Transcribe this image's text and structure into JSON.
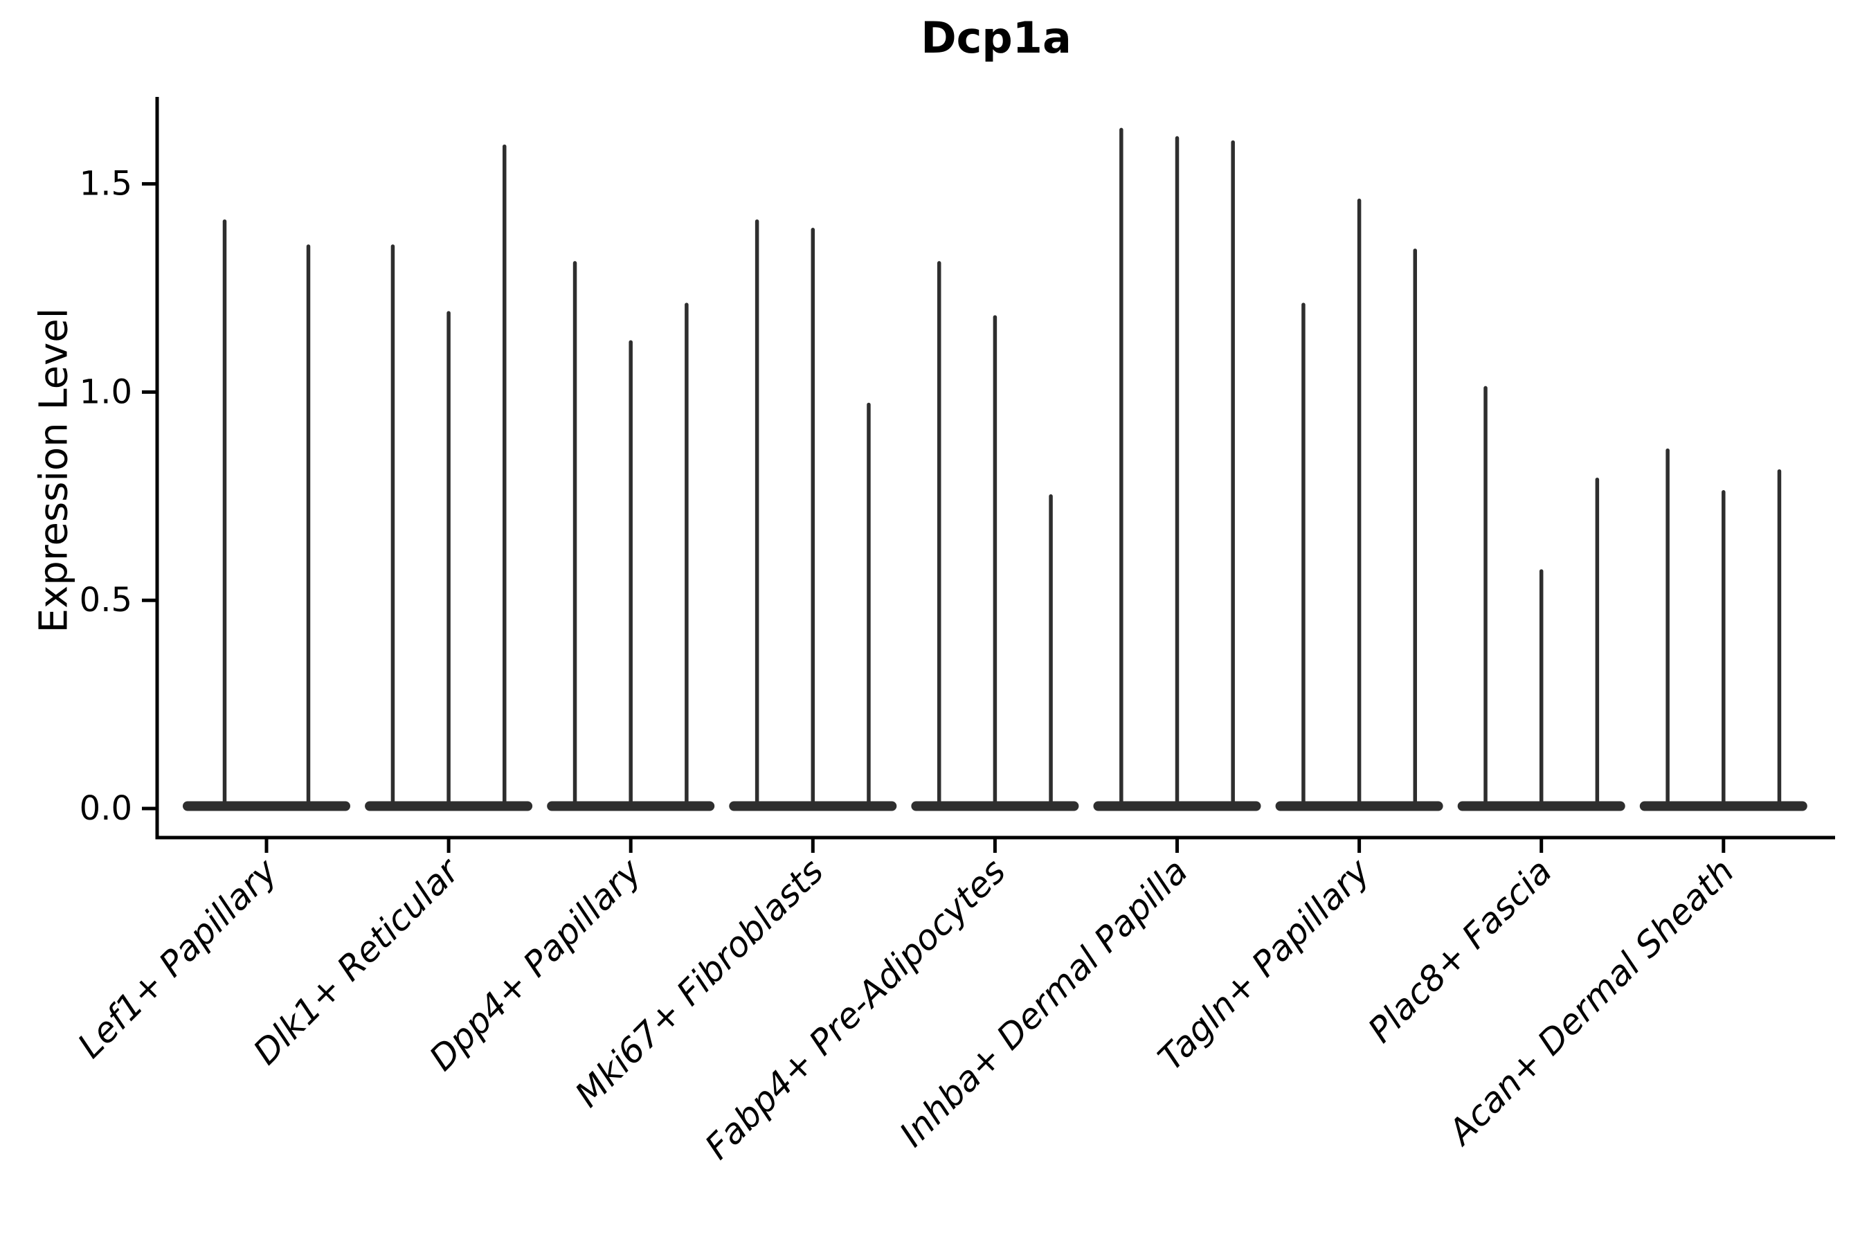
{
  "figure": {
    "title": "Dcp1a",
    "y_axis_label": "Expression Level"
  },
  "chart_data": {
    "type": "violin",
    "title": "Dcp1a",
    "xlabel": "",
    "ylabel": "Expression Level",
    "yticks": [
      0.0,
      0.5,
      1.0,
      1.5
    ],
    "ytick_labels": [
      "0.0",
      "0.5",
      "1.0",
      "1.5"
    ],
    "ylim": [
      -0.07,
      1.72
    ],
    "grid": false,
    "legend": "none",
    "description": "Zero-inflated expression violins: each violin is a flat dense bump at 0 with a very thin tail (spike) reaching up to the maximum expression value listed in violin_peaks.",
    "categories": [
      "Lef1+ Papillary",
      "Dlk1+ Reticular",
      "Dpp4+ Papillary",
      "Mki67+ Fibroblasts",
      "Fabp4+ Pre-Adipocytes",
      "Inhba+ Dermal Papilla",
      "Tagln+ Papillary",
      "Plac8+ Fascia",
      "Acan+ Dermal Sheath"
    ],
    "series": [
      {
        "category": "Lef1+ Papillary",
        "violin_peaks": [
          1.41,
          1.35
        ]
      },
      {
        "category": "Dlk1+ Reticular",
        "violin_peaks": [
          1.35,
          1.19,
          1.59
        ]
      },
      {
        "category": "Dpp4+ Papillary",
        "violin_peaks": [
          1.31,
          1.12,
          1.21
        ]
      },
      {
        "category": "Mki67+ Fibroblasts",
        "violin_peaks": [
          1.41,
          1.39,
          0.97
        ]
      },
      {
        "category": "Fabp4+ Pre-Adipocytes",
        "violin_peaks": [
          1.31,
          1.18,
          0.75
        ]
      },
      {
        "category": "Inhba+ Dermal Papilla",
        "violin_peaks": [
          1.63,
          1.61,
          1.6
        ]
      },
      {
        "category": "Tagln+ Papillary",
        "violin_peaks": [
          1.21,
          1.46,
          1.34
        ]
      },
      {
        "category": "Plac8+ Fascia",
        "violin_peaks": [
          1.01,
          0.57,
          0.79
        ]
      },
      {
        "category": "Acan+ Dermal Sheath",
        "violin_peaks": [
          0.86,
          0.76,
          0.81
        ]
      }
    ],
    "style": {
      "violin_color": "#2e2e2e",
      "axis_color": "#000000",
      "background_color": "#ffffff",
      "xtick_label_style": "italic",
      "xtick_label_rotation_deg": 45
    }
  }
}
